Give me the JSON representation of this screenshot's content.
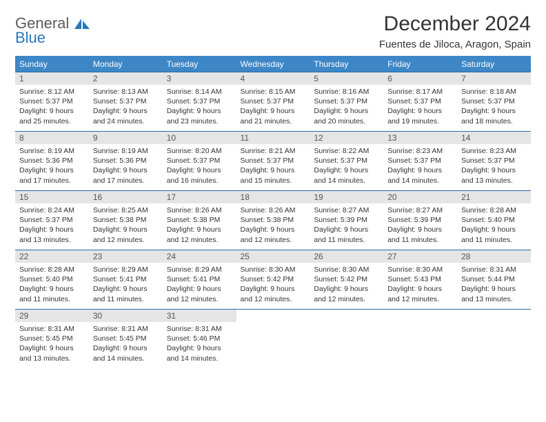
{
  "brand": {
    "part1": "General",
    "part2": "Blue"
  },
  "title": "December 2024",
  "location": "Fuentes de Jiloca, Aragon, Spain",
  "colors": {
    "header_bg": "#3d87c7",
    "header_text": "#ffffff",
    "daynum_bg": "#e5e5e5",
    "rule": "#2a6aa5",
    "brand_gray": "#5a5a5a",
    "brand_blue": "#2a77bb"
  },
  "weekdays": [
    "Sunday",
    "Monday",
    "Tuesday",
    "Wednesday",
    "Thursday",
    "Friday",
    "Saturday"
  ],
  "days": [
    {
      "n": 1,
      "sr": "8:12 AM",
      "ss": "5:37 PM",
      "dl": "9 hours and 25 minutes."
    },
    {
      "n": 2,
      "sr": "8:13 AM",
      "ss": "5:37 PM",
      "dl": "9 hours and 24 minutes."
    },
    {
      "n": 3,
      "sr": "8:14 AM",
      "ss": "5:37 PM",
      "dl": "9 hours and 23 minutes."
    },
    {
      "n": 4,
      "sr": "8:15 AM",
      "ss": "5:37 PM",
      "dl": "9 hours and 21 minutes."
    },
    {
      "n": 5,
      "sr": "8:16 AM",
      "ss": "5:37 PM",
      "dl": "9 hours and 20 minutes."
    },
    {
      "n": 6,
      "sr": "8:17 AM",
      "ss": "5:37 PM",
      "dl": "9 hours and 19 minutes."
    },
    {
      "n": 7,
      "sr": "8:18 AM",
      "ss": "5:37 PM",
      "dl": "9 hours and 18 minutes."
    },
    {
      "n": 8,
      "sr": "8:19 AM",
      "ss": "5:36 PM",
      "dl": "9 hours and 17 minutes."
    },
    {
      "n": 9,
      "sr": "8:19 AM",
      "ss": "5:36 PM",
      "dl": "9 hours and 17 minutes."
    },
    {
      "n": 10,
      "sr": "8:20 AM",
      "ss": "5:37 PM",
      "dl": "9 hours and 16 minutes."
    },
    {
      "n": 11,
      "sr": "8:21 AM",
      "ss": "5:37 PM",
      "dl": "9 hours and 15 minutes."
    },
    {
      "n": 12,
      "sr": "8:22 AM",
      "ss": "5:37 PM",
      "dl": "9 hours and 14 minutes."
    },
    {
      "n": 13,
      "sr": "8:23 AM",
      "ss": "5:37 PM",
      "dl": "9 hours and 14 minutes."
    },
    {
      "n": 14,
      "sr": "8:23 AM",
      "ss": "5:37 PM",
      "dl": "9 hours and 13 minutes."
    },
    {
      "n": 15,
      "sr": "8:24 AM",
      "ss": "5:37 PM",
      "dl": "9 hours and 13 minutes."
    },
    {
      "n": 16,
      "sr": "8:25 AM",
      "ss": "5:38 PM",
      "dl": "9 hours and 12 minutes."
    },
    {
      "n": 17,
      "sr": "8:26 AM",
      "ss": "5:38 PM",
      "dl": "9 hours and 12 minutes."
    },
    {
      "n": 18,
      "sr": "8:26 AM",
      "ss": "5:38 PM",
      "dl": "9 hours and 12 minutes."
    },
    {
      "n": 19,
      "sr": "8:27 AM",
      "ss": "5:39 PM",
      "dl": "9 hours and 11 minutes."
    },
    {
      "n": 20,
      "sr": "8:27 AM",
      "ss": "5:39 PM",
      "dl": "9 hours and 11 minutes."
    },
    {
      "n": 21,
      "sr": "8:28 AM",
      "ss": "5:40 PM",
      "dl": "9 hours and 11 minutes."
    },
    {
      "n": 22,
      "sr": "8:28 AM",
      "ss": "5:40 PM",
      "dl": "9 hours and 11 minutes."
    },
    {
      "n": 23,
      "sr": "8:29 AM",
      "ss": "5:41 PM",
      "dl": "9 hours and 11 minutes."
    },
    {
      "n": 24,
      "sr": "8:29 AM",
      "ss": "5:41 PM",
      "dl": "9 hours and 12 minutes."
    },
    {
      "n": 25,
      "sr": "8:30 AM",
      "ss": "5:42 PM",
      "dl": "9 hours and 12 minutes."
    },
    {
      "n": 26,
      "sr": "8:30 AM",
      "ss": "5:42 PM",
      "dl": "9 hours and 12 minutes."
    },
    {
      "n": 27,
      "sr": "8:30 AM",
      "ss": "5:43 PM",
      "dl": "9 hours and 12 minutes."
    },
    {
      "n": 28,
      "sr": "8:31 AM",
      "ss": "5:44 PM",
      "dl": "9 hours and 13 minutes."
    },
    {
      "n": 29,
      "sr": "8:31 AM",
      "ss": "5:45 PM",
      "dl": "9 hours and 13 minutes."
    },
    {
      "n": 30,
      "sr": "8:31 AM",
      "ss": "5:45 PM",
      "dl": "9 hours and 14 minutes."
    },
    {
      "n": 31,
      "sr": "8:31 AM",
      "ss": "5:46 PM",
      "dl": "9 hours and 14 minutes."
    }
  ],
  "labels": {
    "sunrise": "Sunrise:",
    "sunset": "Sunset:",
    "daylight": "Daylight:"
  }
}
